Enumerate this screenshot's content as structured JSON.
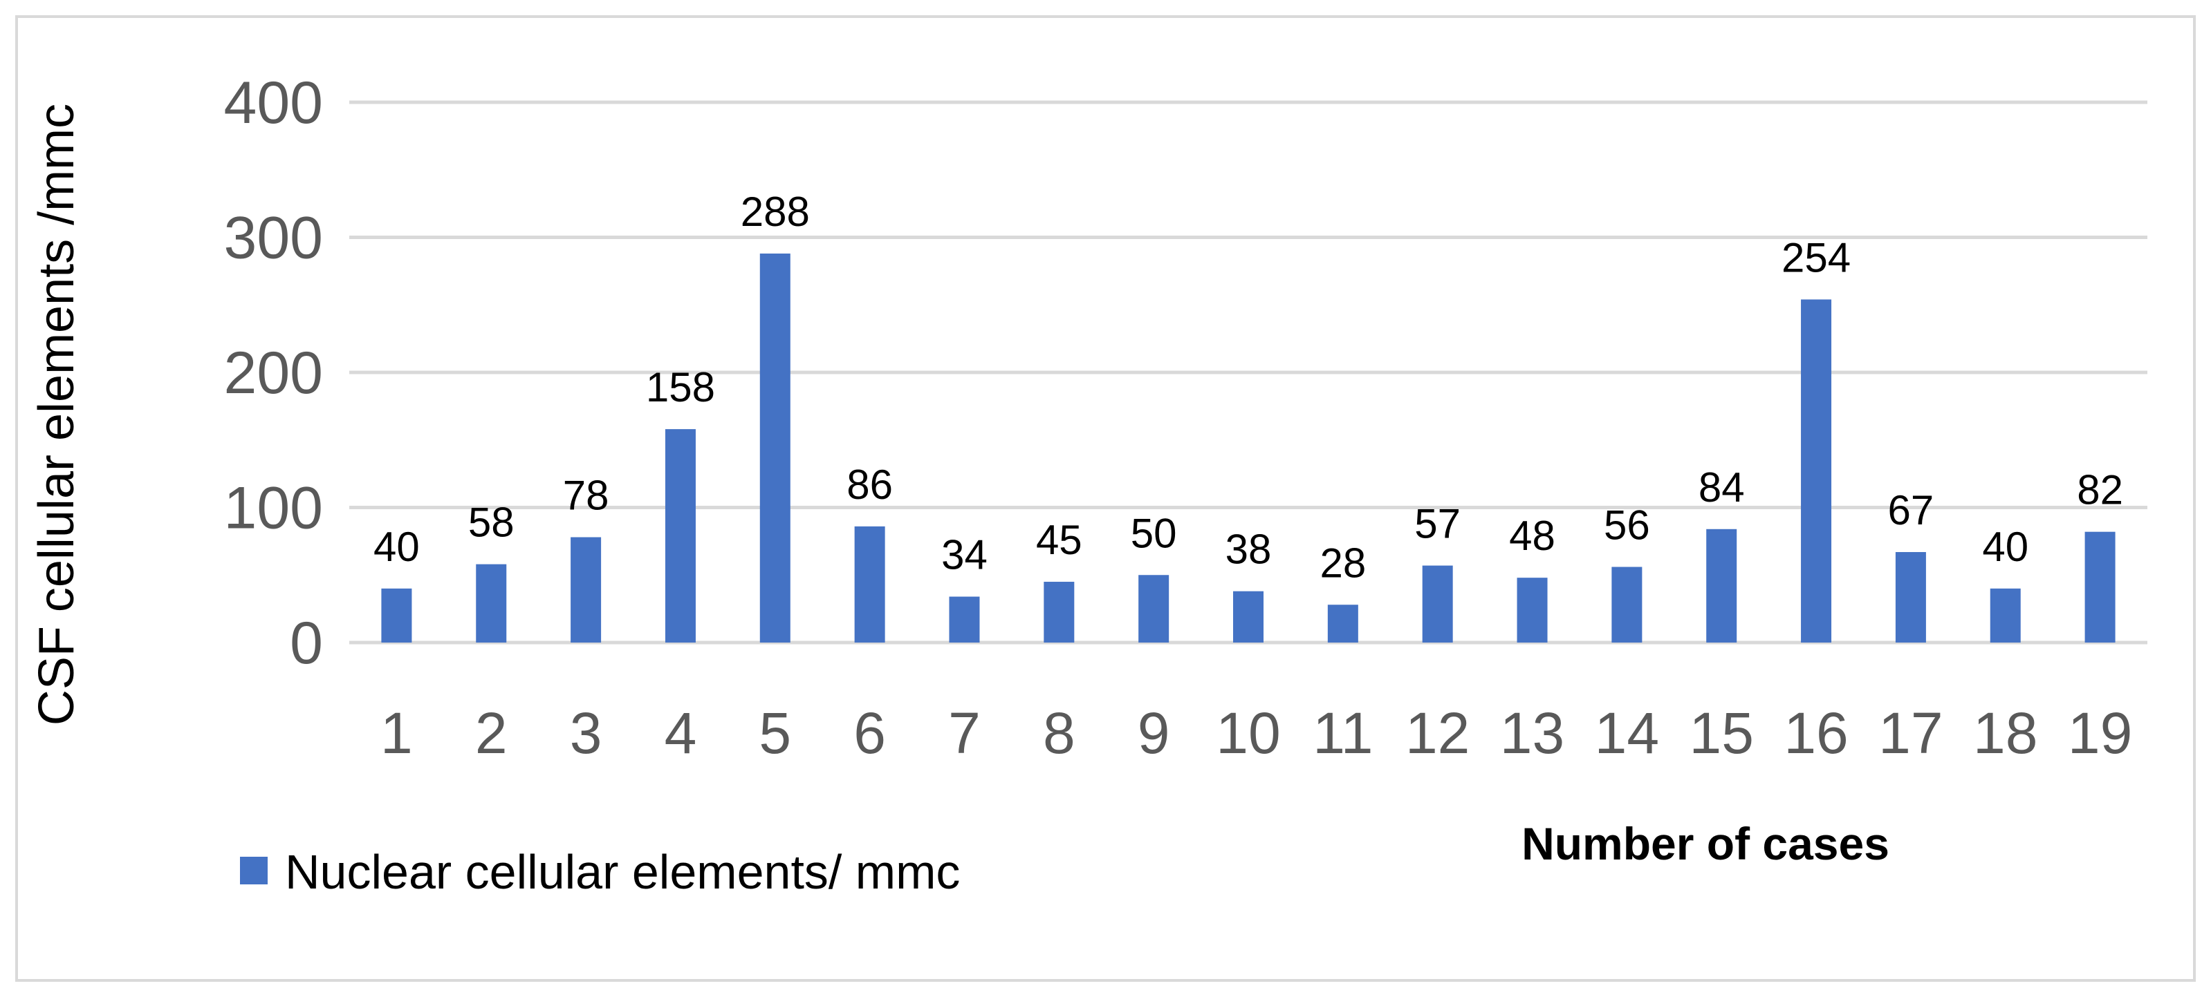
{
  "chart_data": {
    "type": "bar",
    "title": "",
    "xlabel": "Number of cases",
    "ylabel": "CSF cellular elements /mmc",
    "ylim": [
      0,
      400
    ],
    "yticks": [
      "0",
      "100",
      "200",
      "300",
      "400"
    ],
    "grid": true,
    "legend_position": "bottom-left",
    "categories": [
      "1",
      "2",
      "3",
      "4",
      "5",
      "6",
      "7",
      "8",
      "9",
      "10",
      "11",
      "12",
      "13",
      "14",
      "15",
      "16",
      "17",
      "18",
      "19"
    ],
    "series": [
      {
        "name": "Nuclear cellular elements/ mmc",
        "color": "#4472c4",
        "values": [
          40,
          58,
          78,
          158,
          288,
          86,
          34,
          45,
          50,
          38,
          28,
          57,
          48,
          56,
          84,
          254,
          67,
          40,
          82
        ]
      }
    ]
  }
}
